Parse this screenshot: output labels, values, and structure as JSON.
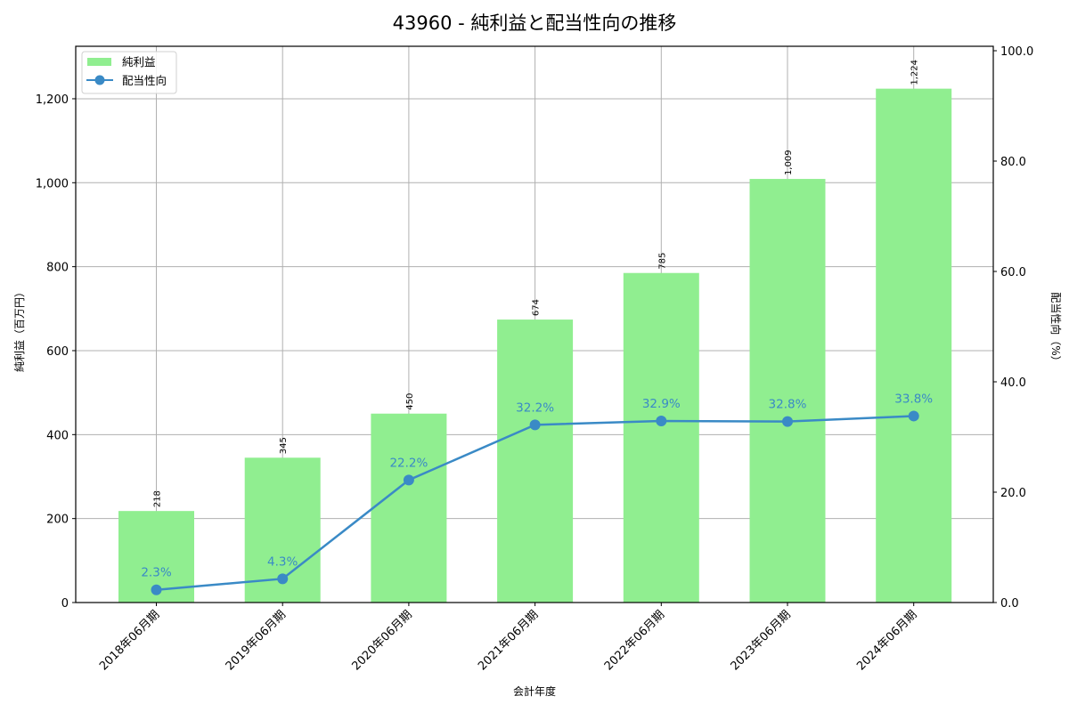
{
  "title": "43960 - 純利益と配当性向の推移",
  "chart_data": {
    "type": "bar+line",
    "title": "43960 - 純利益と配当性向の推移",
    "xlabel": "会計年度",
    "ylabel_left": "純利益（百万円）",
    "ylabel_right": "配当性向（%）",
    "categories": [
      "2018年06月期",
      "2019年06月期",
      "2020年06月期",
      "2021年06月期",
      "2022年06月期",
      "2023年06月期",
      "2024年06月期"
    ],
    "series": [
      {
        "name": "純利益",
        "type": "bar",
        "axis": "left",
        "color": "#90ee90",
        "values": [
          218,
          345,
          450,
          674,
          785,
          1009,
          1224
        ],
        "labels": [
          "218",
          "345",
          "450",
          "674",
          "785",
          "1,009",
          "1,224"
        ]
      },
      {
        "name": "配当性向",
        "type": "line",
        "axis": "right",
        "color": "#3a8ac6",
        "values": [
          2.3,
          4.3,
          22.2,
          32.2,
          32.9,
          32.8,
          33.8
        ],
        "labels": [
          "2.3%",
          "4.3%",
          "22.2%",
          "32.2%",
          "32.9%",
          "32.8%",
          "33.8%"
        ]
      }
    ],
    "ylim_left": [
      0,
      1325
    ],
    "ylim_right": [
      0,
      100
    ],
    "yticks_left": [
      0,
      200,
      400,
      600,
      800,
      1000,
      1200
    ],
    "yticks_left_labels": [
      "0",
      "200",
      "400",
      "600",
      "800",
      "1,000",
      "1,200"
    ],
    "yticks_right": [
      0,
      20,
      40,
      60,
      80,
      100
    ],
    "yticks_right_labels": [
      "0.0",
      "20.0",
      "40.0",
      "60.0",
      "80.0",
      "100.0"
    ],
    "grid": true,
    "legend": {
      "position": "upper left",
      "entries": [
        "純利益",
        "配当性向"
      ]
    }
  }
}
